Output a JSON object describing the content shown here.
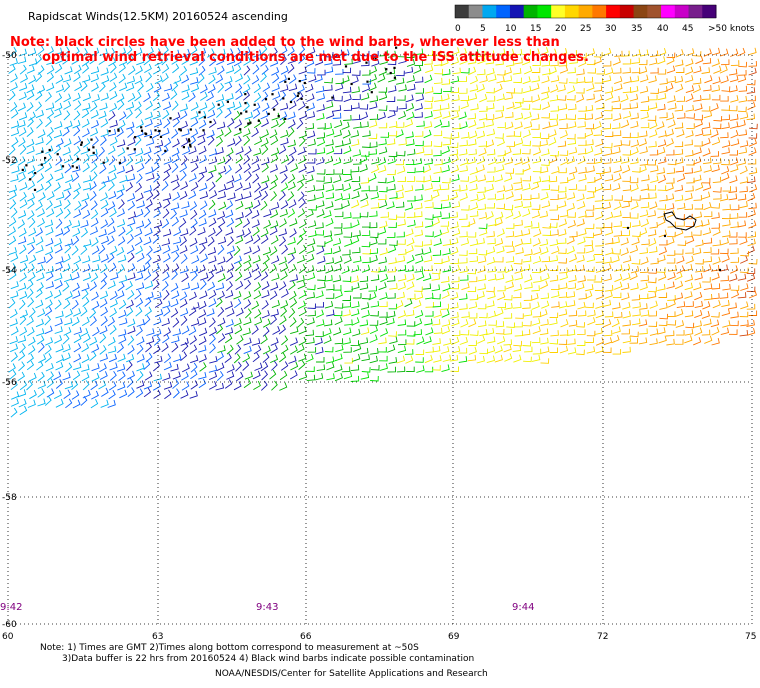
{
  "header": {
    "title": "Rapidscat Winds(12.5KM) 20160524 ascending",
    "note": "Note: black circles have been added to the wind barbs, wherever less than",
    "note2": "optimal wind retrieval conditions are met due to the ISS attitude changes."
  },
  "colorbar": {
    "labels": [
      "0",
      "5",
      "10",
      "15",
      "20",
      "25",
      "30",
      "35",
      "40",
      "45",
      ">50 knots"
    ],
    "colors": [
      "#3c3c3c",
      "#8c8c8c",
      "#00a8f0",
      "#0064ff",
      "#1414b4",
      "#00b400",
      "#00e600",
      "#ffff28",
      "#ffd700",
      "#ffaa00",
      "#ff7800",
      "#ff0000",
      "#c80000",
      "#8b4513",
      "#a0522d",
      "#ff00ff",
      "#c800c8",
      "#781e8c",
      "#460078"
    ]
  },
  "axes": {
    "lon_ticks": [
      "60",
      "63",
      "66",
      "69",
      "72",
      "75"
    ],
    "lat_ticks": [
      "-50",
      "-52",
      "-54",
      "-56",
      "-58",
      "-60"
    ]
  },
  "times": [
    "9:42",
    "9:43",
    "9:44"
  ],
  "footer": {
    "line1": "Note: 1) Times are GMT 2)Times along bottom correspond to measurement at ~50S",
    "line2": "3)Data buffer is 22 hrs from 20160524 4) Black wind barbs indicate possible contamination",
    "credit": "NOAA/NESDIS/Center for Satellite Applications and Research"
  }
}
